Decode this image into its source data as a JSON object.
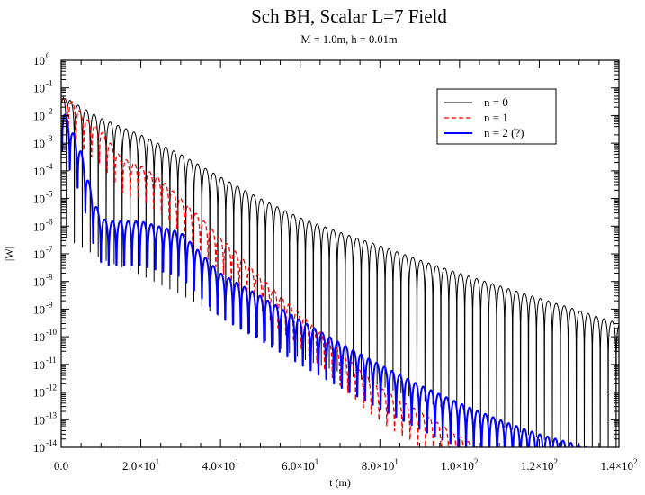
{
  "chart_data": {
    "type": "line",
    "title": "Sch BH, Scalar L=7 Field",
    "subtitle": "M = 1.0m, h = 0.01m",
    "xlabel": "t (m)",
    "ylabel": "|W|",
    "xlim": [
      0,
      140
    ],
    "ylim": [
      1e-14,
      1
    ],
    "yscale": "log",
    "grid": false,
    "legend_position": "top-right",
    "x_ticks": [
      {
        "value": 0,
        "label": "0.0"
      },
      {
        "value": 20,
        "label": "2.0×10",
        "exp": "1"
      },
      {
        "value": 40,
        "label": "4.0×10",
        "exp": "1"
      },
      {
        "value": 60,
        "label": "6.0×10",
        "exp": "1"
      },
      {
        "value": 80,
        "label": "8.0×10",
        "exp": "1"
      },
      {
        "value": 100,
        "label": "1.0×10",
        "exp": "2"
      },
      {
        "value": 120,
        "label": "1.2×10",
        "exp": "2"
      },
      {
        "value": 140,
        "label": "1.4×10",
        "exp": "2"
      }
    ],
    "y_ticks": [
      {
        "value": 1,
        "label": "10",
        "exp": "0"
      },
      {
        "value": 0.1,
        "label": "10",
        "exp": "-1"
      },
      {
        "value": 0.01,
        "label": "10",
        "exp": "-2"
      },
      {
        "value": 0.001,
        "label": "10",
        "exp": "-3"
      },
      {
        "value": 0.0001,
        "label": "10",
        "exp": "-4"
      },
      {
        "value": 1e-05,
        "label": "10",
        "exp": "-5"
      },
      {
        "value": 1e-06,
        "label": "10",
        "exp": "-6"
      },
      {
        "value": 1e-07,
        "label": "10",
        "exp": "-7"
      },
      {
        "value": 1e-08,
        "label": "10",
        "exp": "-8"
      },
      {
        "value": 1e-09,
        "label": "10",
        "exp": "-9"
      },
      {
        "value": 1e-10,
        "label": "10",
        "exp": "-10"
      },
      {
        "value": 1e-11,
        "label": "10",
        "exp": "-11"
      },
      {
        "value": 1e-12,
        "label": "10",
        "exp": "-12"
      },
      {
        "value": 1e-13,
        "label": "10",
        "exp": "-13"
      },
      {
        "value": 1e-14,
        "label": "10",
        "exp": "-14"
      }
    ],
    "series": [
      {
        "name": "n = 0",
        "color": "#000000",
        "dash": "solid",
        "envelope": [
          [
            0.5,
            0.05
          ],
          [
            4,
            0.025
          ],
          [
            10,
            0.008
          ],
          [
            20,
            0.002
          ],
          [
            30,
            0.0004
          ],
          [
            40,
            6e-05
          ],
          [
            50,
            1e-05
          ],
          [
            60,
            2e-06
          ],
          [
            70,
            6e-07
          ],
          [
            80,
            2e-07
          ],
          [
            90,
            6e-08
          ],
          [
            100,
            2e-08
          ],
          [
            110,
            7e-09
          ],
          [
            120,
            2.5e-09
          ],
          [
            130,
            9e-10
          ],
          [
            140,
            3e-10
          ]
        ],
        "node_spacing": 2.0,
        "node_start": 0.3,
        "dip_depth": 2.3
      },
      {
        "name": "n = 1",
        "color": "#ff0000",
        "dash": "dashed",
        "envelope": [
          [
            0.3,
            0.05
          ],
          [
            3,
            0.03
          ],
          [
            6,
            0.008
          ],
          [
            10,
            0.003
          ],
          [
            15,
            0.0003
          ],
          [
            20,
            0.00015
          ],
          [
            25,
            5e-05
          ],
          [
            30,
            1e-05
          ],
          [
            35,
            2e-06
          ],
          [
            40,
            4e-07
          ],
          [
            45,
            8e-08
          ],
          [
            50,
            1.5e-08
          ],
          [
            55,
            3e-09
          ],
          [
            60,
            7e-10
          ],
          [
            65,
            1.5e-10
          ],
          [
            70,
            3e-11
          ],
          [
            75,
            6e-12
          ],
          [
            80,
            1.5e-12
          ],
          [
            85,
            5e-13
          ],
          [
            90,
            2e-13
          ],
          [
            95,
            7e-14
          ],
          [
            100,
            2.5e-14
          ],
          [
            105,
            9e-15
          ],
          [
            110,
            4e-15
          ]
        ],
        "node_spacing": 1.95,
        "node_start": 0.8,
        "dip_depth": 2.0
      },
      {
        "name": "n = 2 (?)",
        "color": "#0000ff",
        "dash": "solid",
        "envelope": [
          [
            0.3,
            0.02
          ],
          [
            2,
            0.005
          ],
          [
            5,
            0.0005
          ],
          [
            8,
            1e-05
          ],
          [
            10,
            2e-06
          ],
          [
            12,
            1.5e-06
          ],
          [
            20,
            1.5e-06
          ],
          [
            30,
            6e-07
          ],
          [
            40,
            2e-08
          ],
          [
            50,
            3e-09
          ],
          [
            60,
            4e-10
          ],
          [
            70,
            6e-11
          ],
          [
            80,
            1e-11
          ],
          [
            90,
            1.8e-12
          ],
          [
            100,
            4e-13
          ],
          [
            110,
            1e-13
          ],
          [
            120,
            3e-14
          ],
          [
            130,
            1.2e-14
          ],
          [
            140,
            5e-15
          ]
        ],
        "node_spacing": 1.95,
        "node_start": 1.2,
        "dip_depth": 2.6
      }
    ]
  }
}
